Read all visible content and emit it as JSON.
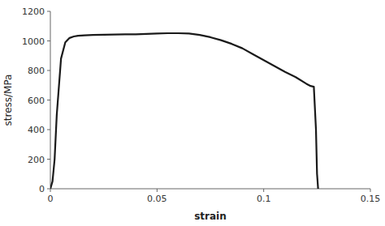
{
  "chart_data": {
    "type": "line",
    "xlabel": "strain",
    "ylabel": "stress/MPa",
    "x": [
      0.0,
      0.001,
      0.002,
      0.003,
      0.005,
      0.007,
      0.009,
      0.011,
      0.013,
      0.016,
      0.02,
      0.025,
      0.03,
      0.035,
      0.04,
      0.045,
      0.05,
      0.055,
      0.06,
      0.065,
      0.07,
      0.075,
      0.08,
      0.085,
      0.09,
      0.095,
      0.1,
      0.105,
      0.11,
      0.115,
      0.12,
      0.122,
      0.1235,
      0.1245,
      0.125,
      0.1255
    ],
    "values": [
      0,
      50,
      200,
      500,
      880,
      990,
      1020,
      1030,
      1035,
      1038,
      1040,
      1042,
      1043,
      1044,
      1045,
      1047,
      1050,
      1052,
      1052,
      1050,
      1040,
      1025,
      1005,
      980,
      950,
      910,
      870,
      830,
      790,
      755,
      710,
      695,
      690,
      400,
      100,
      0
    ],
    "color": "#1a1a1a",
    "xlim": [
      0,
      0.15
    ],
    "ylim": [
      0,
      1200
    ],
    "xticks": [
      0,
      0.05,
      0.1,
      0.15
    ],
    "yticks": [
      0,
      200,
      400,
      600,
      800,
      1000,
      1200
    ],
    "grid": false
  }
}
